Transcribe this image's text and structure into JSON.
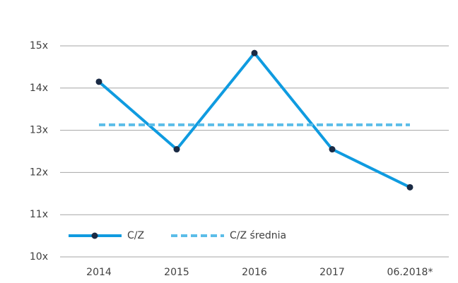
{
  "chart_data": {
    "type": "line",
    "categories": [
      "2014",
      "2015",
      "2016",
      "2017",
      "06.2018*"
    ],
    "series": [
      {
        "name": "C/Z",
        "color": "#0f9be0",
        "values": [
          14.15,
          12.55,
          14.83,
          12.55,
          11.65
        ],
        "markers": true,
        "dashed": false
      },
      {
        "name": "C/Z średnia",
        "color": "#5bbde8",
        "values": [
          13.13,
          13.13,
          13.13,
          13.13,
          13.13
        ],
        "markers": false,
        "dashed": true
      }
    ],
    "ylim": [
      10,
      15
    ],
    "yticks": [
      {
        "value": 10,
        "label": "10x"
      },
      {
        "value": 11,
        "label": "11x"
      },
      {
        "value": 12,
        "label": "12x"
      },
      {
        "value": 13,
        "label": "13x"
      },
      {
        "value": 14,
        "label": "14x"
      },
      {
        "value": 15,
        "label": "15x"
      }
    ],
    "grid": true
  }
}
